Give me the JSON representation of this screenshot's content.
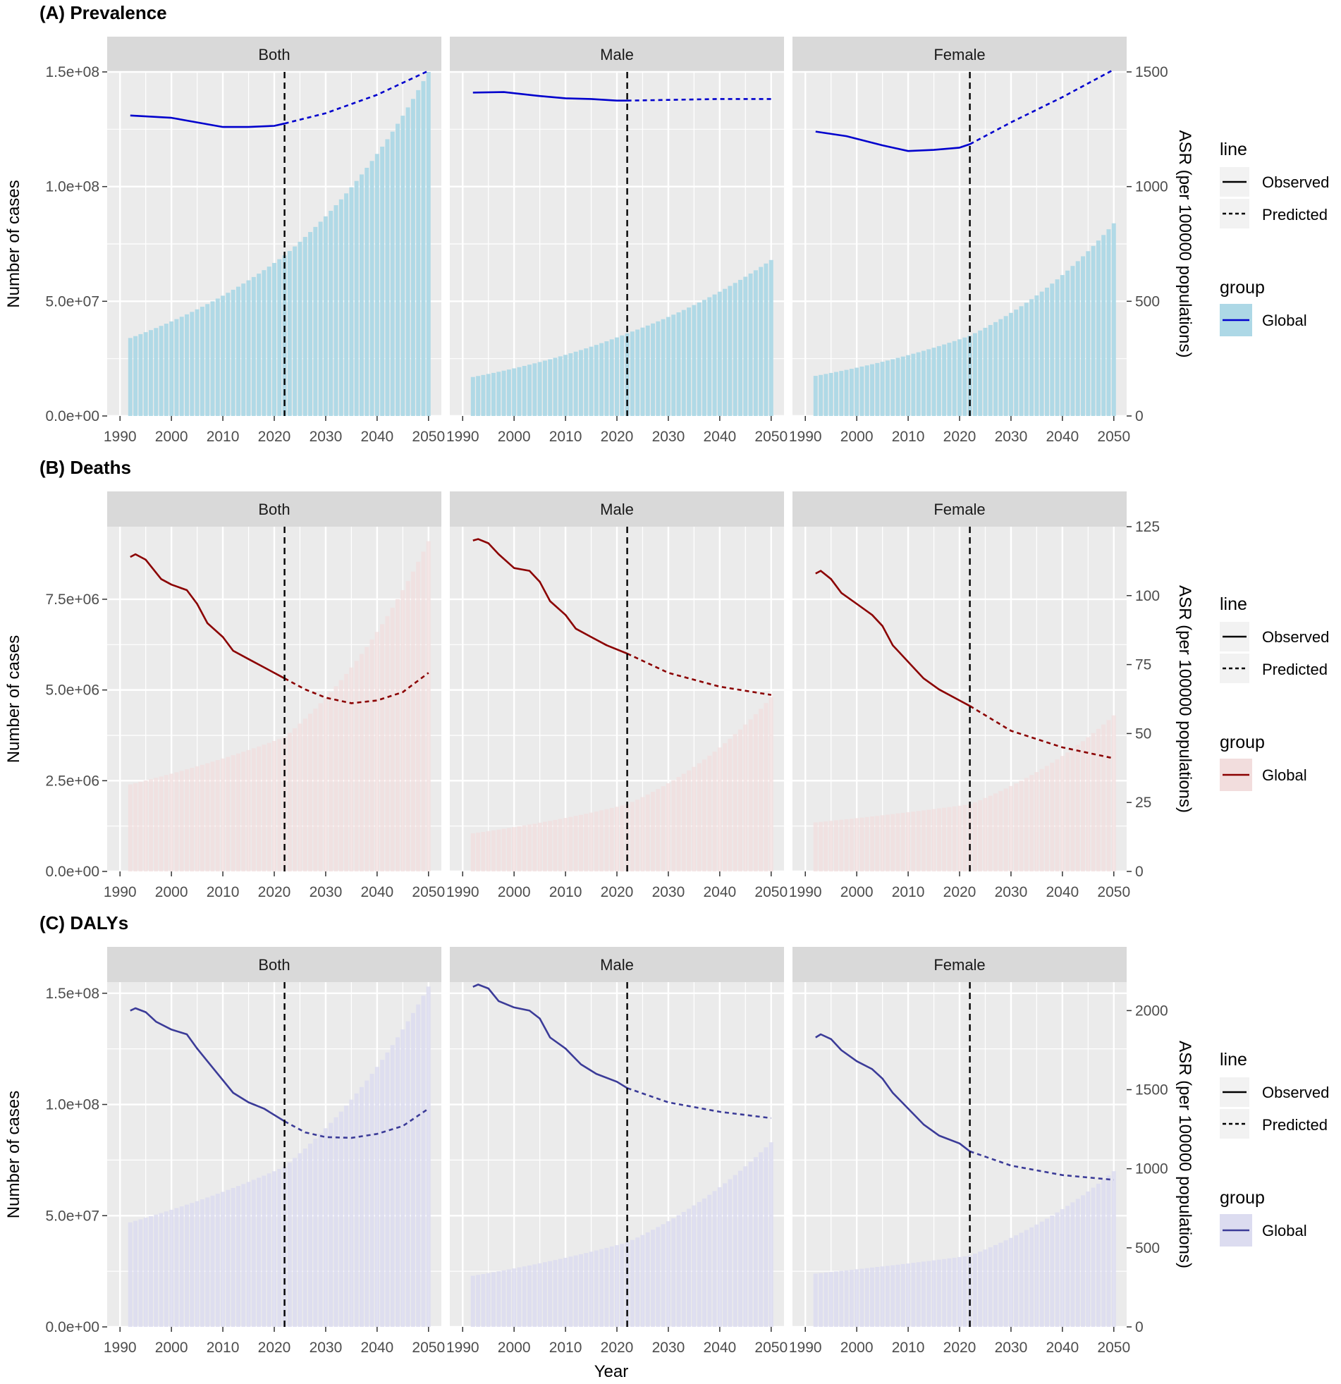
{
  "figure": {
    "x_title": "Year",
    "colors": {
      "panel_bg": "#EBEBEB",
      "grid": "#FFFFFF",
      "strip_bg": "#D9D9D9",
      "axis_text": "#4D4D4D",
      "title": "#000000"
    }
  },
  "chart_data": [
    {
      "id": "prevalence",
      "type": "bar",
      "title": "(A) Prevalence",
      "ylabel": "Number of cases",
      "y2label": "ASR (per 100000 populations)",
      "ylim": [
        0,
        150000000
      ],
      "y_ticks": [
        0,
        50000000,
        100000000,
        150000000
      ],
      "y_tick_labels": [
        "0.0e+00",
        "5.0e+07",
        "1.0e+08",
        "1.5e+08"
      ],
      "y2lim": [
        0,
        1500
      ],
      "y2_ticks": [
        0,
        500,
        1000,
        1500
      ],
      "y2_tick_labels": [
        "0",
        "500",
        "1000",
        "1500"
      ],
      "xlim": [
        1990,
        2050
      ],
      "x_ticks": [
        1990,
        2000,
        2010,
        2020,
        2030,
        2040,
        2050
      ],
      "x_tick_labels": [
        "1990",
        "2000",
        "2010",
        "2020",
        "2030",
        "2040",
        "2050"
      ],
      "cutoff_year": 2022,
      "colors": {
        "line": "#0000CD",
        "bar": "#ADD8E6",
        "bar_opacity": 0.95
      },
      "legend": {
        "line_title": "line",
        "observed": "Observed",
        "predicted": "Predicted",
        "group_title": "group",
        "group": "Global"
      },
      "facets": [
        {
          "label": "Both",
          "bars": {
            "start": 1992,
            "end": 2050,
            "v_start": 34000000,
            "v_2022": 70000000,
            "v_end": 150000000
          },
          "asr_points": [
            [
              1992,
              1310
            ],
            [
              2000,
              1300
            ],
            [
              2005,
              1280
            ],
            [
              2010,
              1260
            ],
            [
              2015,
              1260
            ],
            [
              2020,
              1265
            ],
            [
              2022,
              1275
            ],
            [
              2030,
              1320
            ],
            [
              2040,
              1400
            ],
            [
              2050,
              1505
            ]
          ]
        },
        {
          "label": "Male",
          "bars": {
            "start": 1992,
            "end": 2050,
            "v_start": 17000000,
            "v_2022": 36000000,
            "v_end": 68000000
          },
          "asr_points": [
            [
              1992,
              1410
            ],
            [
              1998,
              1412
            ],
            [
              2005,
              1395
            ],
            [
              2010,
              1385
            ],
            [
              2015,
              1382
            ],
            [
              2020,
              1375
            ],
            [
              2022,
              1375
            ],
            [
              2030,
              1378
            ],
            [
              2040,
              1382
            ],
            [
              2050,
              1382
            ]
          ]
        },
        {
          "label": "Female",
          "bars": {
            "start": 1992,
            "end": 2050,
            "v_start": 17500000,
            "v_2022": 35000000,
            "v_end": 84000000
          },
          "asr_points": [
            [
              1992,
              1240
            ],
            [
              1998,
              1220
            ],
            [
              2005,
              1180
            ],
            [
              2010,
              1155
            ],
            [
              2015,
              1160
            ],
            [
              2020,
              1170
            ],
            [
              2022,
              1185
            ],
            [
              2030,
              1280
            ],
            [
              2040,
              1390
            ],
            [
              2050,
              1510
            ]
          ]
        }
      ]
    },
    {
      "id": "deaths",
      "type": "bar",
      "title": "(B) Deaths",
      "ylabel": "Number of cases",
      "y2label": "ASR (per 100000 populations)",
      "ylim": [
        0,
        9500000
      ],
      "y_ticks": [
        0,
        2500000,
        5000000,
        7500000
      ],
      "y_tick_labels": [
        "0.0e+00",
        "2.5e+06",
        "5.0e+06",
        "7.5e+06"
      ],
      "y2lim": [
        0,
        125
      ],
      "y2_ticks": [
        0,
        25,
        50,
        75,
        100,
        125
      ],
      "y2_tick_labels": [
        "0",
        "25",
        "50",
        "75",
        "100",
        "125"
      ],
      "xlim": [
        1990,
        2050
      ],
      "x_ticks": [
        1990,
        2000,
        2010,
        2020,
        2030,
        2040,
        2050
      ],
      "x_tick_labels": [
        "1990",
        "2000",
        "2010",
        "2020",
        "2030",
        "2040",
        "2050"
      ],
      "cutoff_year": 2022,
      "colors": {
        "line": "#8B0000",
        "bar": "#F2DDDD",
        "bar_opacity": 0.75
      },
      "legend": {
        "line_title": "line",
        "observed": "Observed",
        "predicted": "Predicted",
        "group_title": "group",
        "group": "Global"
      },
      "facets": [
        {
          "label": "Both",
          "bars": {
            "start": 1992,
            "end": 2050,
            "v_start": 2400000,
            "v_2022": 3700000,
            "v_end": 9100000
          },
          "asr_points": [
            [
              1992,
              114
            ],
            [
              1993,
              115
            ],
            [
              1995,
              113
            ],
            [
              1998,
              106
            ],
            [
              2000,
              104
            ],
            [
              2003,
              102
            ],
            [
              2005,
              97
            ],
            [
              2007,
              90
            ],
            [
              2010,
              85
            ],
            [
              2012,
              80
            ],
            [
              2015,
              77
            ],
            [
              2018,
              74
            ],
            [
              2022,
              70
            ],
            [
              2026,
              66
            ],
            [
              2030,
              63
            ],
            [
              2035,
              61
            ],
            [
              2040,
              62
            ],
            [
              2045,
              65
            ],
            [
              2050,
              72
            ]
          ]
        },
        {
          "label": "Male",
          "bars": {
            "start": 1992,
            "end": 2050,
            "v_start": 1050000,
            "v_2022": 1850000,
            "v_end": 4800000
          },
          "asr_points": [
            [
              1992,
              120
            ],
            [
              1993,
              120.5
            ],
            [
              1995,
              119
            ],
            [
              1997,
              115
            ],
            [
              2000,
              110
            ],
            [
              2003,
              109
            ],
            [
              2005,
              105
            ],
            [
              2007,
              98
            ],
            [
              2010,
              93
            ],
            [
              2012,
              88
            ],
            [
              2015,
              85
            ],
            [
              2018,
              82
            ],
            [
              2022,
              79
            ],
            [
              2030,
              72
            ],
            [
              2040,
              67
            ],
            [
              2050,
              64
            ]
          ]
        },
        {
          "label": "Female",
          "bars": {
            "start": 1992,
            "end": 2050,
            "v_start": 1350000,
            "v_2022": 1850000,
            "v_end": 4300000
          },
          "asr_points": [
            [
              1992,
              108
            ],
            [
              1993,
              109
            ],
            [
              1995,
              106
            ],
            [
              1997,
              101
            ],
            [
              2000,
              97
            ],
            [
              2003,
              93
            ],
            [
              2005,
              89
            ],
            [
              2007,
              82
            ],
            [
              2010,
              76
            ],
            [
              2013,
              70
            ],
            [
              2016,
              66
            ],
            [
              2020,
              62
            ],
            [
              2022,
              60
            ],
            [
              2030,
              51
            ],
            [
              2040,
              45
            ],
            [
              2050,
              41
            ]
          ]
        }
      ]
    },
    {
      "id": "dalys",
      "type": "bar",
      "title": "(C) DALYs",
      "ylabel": "Number of cases",
      "y2label": "ASR (per 100000 populations)",
      "ylim": [
        0,
        155000000
      ],
      "y_ticks": [
        0,
        50000000,
        100000000,
        150000000
      ],
      "y_tick_labels": [
        "0.0e+00",
        "5.0e+07",
        "1.0e+08",
        "1.5e+08"
      ],
      "y2lim": [
        0,
        2180
      ],
      "y2_ticks": [
        0,
        500,
        1000,
        1500,
        2000
      ],
      "y2_tick_labels": [
        "0",
        "500",
        "1000",
        "1500",
        "2000"
      ],
      "xlim": [
        1990,
        2050
      ],
      "x_ticks": [
        1990,
        2000,
        2010,
        2020,
        2030,
        2040,
        2050
      ],
      "x_tick_labels": [
        "1990",
        "2000",
        "2010",
        "2020",
        "2030",
        "2040",
        "2050"
      ],
      "cutoff_year": 2022,
      "colors": {
        "line": "#3B3B98",
        "bar": "#DCDCF0",
        "bar_opacity": 0.85
      },
      "legend": {
        "line_title": "line",
        "observed": "Observed",
        "predicted": "Predicted",
        "group_title": "group",
        "group": "Global"
      },
      "facets": [
        {
          "label": "Both",
          "bars": {
            "start": 1992,
            "end": 2050,
            "v_start": 47000000,
            "v_2022": 72000000,
            "v_end": 153000000
          },
          "asr_points": [
            [
              1992,
              2000
            ],
            [
              1993,
              2015
            ],
            [
              1995,
              1990
            ],
            [
              1997,
              1930
            ],
            [
              2000,
              1880
            ],
            [
              2003,
              1850
            ],
            [
              2005,
              1760
            ],
            [
              2007,
              1680
            ],
            [
              2010,
              1560
            ],
            [
              2012,
              1480
            ],
            [
              2015,
              1420
            ],
            [
              2018,
              1380
            ],
            [
              2022,
              1300
            ],
            [
              2026,
              1230
            ],
            [
              2030,
              1200
            ],
            [
              2035,
              1195
            ],
            [
              2040,
              1220
            ],
            [
              2045,
              1270
            ],
            [
              2050,
              1380
            ]
          ]
        },
        {
          "label": "Male",
          "bars": {
            "start": 1992,
            "end": 2050,
            "v_start": 23000000,
            "v_2022": 38000000,
            "v_end": 83000000
          },
          "asr_points": [
            [
              1992,
              2150
            ],
            [
              1993,
              2165
            ],
            [
              1995,
              2140
            ],
            [
              1997,
              2060
            ],
            [
              2000,
              2020
            ],
            [
              2003,
              2000
            ],
            [
              2005,
              1950
            ],
            [
              2007,
              1830
            ],
            [
              2010,
              1760
            ],
            [
              2013,
              1660
            ],
            [
              2016,
              1600
            ],
            [
              2020,
              1550
            ],
            [
              2022,
              1510
            ],
            [
              2030,
              1420
            ],
            [
              2040,
              1360
            ],
            [
              2050,
              1320
            ]
          ]
        },
        {
          "label": "Female",
          "bars": {
            "start": 1992,
            "end": 2050,
            "v_start": 24000000,
            "v_2022": 32000000,
            "v_end": 70000000
          },
          "asr_points": [
            [
              1992,
              1830
            ],
            [
              1993,
              1850
            ],
            [
              1995,
              1820
            ],
            [
              1997,
              1750
            ],
            [
              2000,
              1680
            ],
            [
              2003,
              1630
            ],
            [
              2005,
              1570
            ],
            [
              2007,
              1480
            ],
            [
              2010,
              1380
            ],
            [
              2013,
              1280
            ],
            [
              2016,
              1210
            ],
            [
              2020,
              1160
            ],
            [
              2022,
              1110
            ],
            [
              2030,
              1020
            ],
            [
              2040,
              960
            ],
            [
              2050,
              930
            ]
          ]
        }
      ]
    }
  ]
}
